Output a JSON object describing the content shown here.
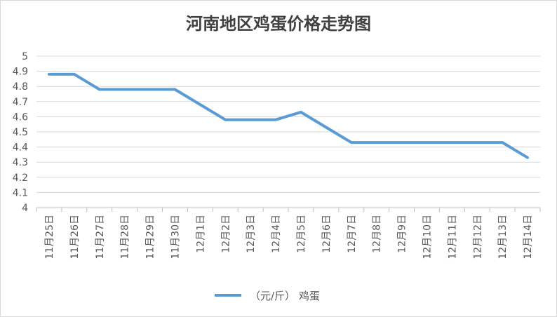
{
  "chart_data": {
    "type": "line",
    "title": "河南地区鸡蛋价格走势图",
    "categories": [
      "11月25日",
      "11月26日",
      "11月27日",
      "11月28日",
      "11月29日",
      "11月30日",
      "12月1日",
      "12月2日",
      "12月3日",
      "12月4日",
      "12月5日",
      "12月6日",
      "12月7日",
      "12月8日",
      "12月9日",
      "12月10日",
      "12月11日",
      "12月12日",
      "12月13日",
      "12月14日"
    ],
    "series": [
      {
        "name": "（元/斤） 鸡蛋",
        "values": [
          4.88,
          4.88,
          4.78,
          4.78,
          4.78,
          4.78,
          4.68,
          4.58,
          4.58,
          4.58,
          4.63,
          4.53,
          4.43,
          4.43,
          4.43,
          4.43,
          4.43,
          4.43,
          4.43,
          4.33
        ],
        "color": "#5b9bd5"
      }
    ],
    "ylim": [
      4,
      5
    ],
    "yticks": [
      "4",
      "4.1",
      "4.2",
      "4.3",
      "4.4",
      "4.5",
      "4.6",
      "4.7",
      "4.8",
      "4.9",
      "5"
    ],
    "grid": true,
    "legend": "bottom"
  }
}
